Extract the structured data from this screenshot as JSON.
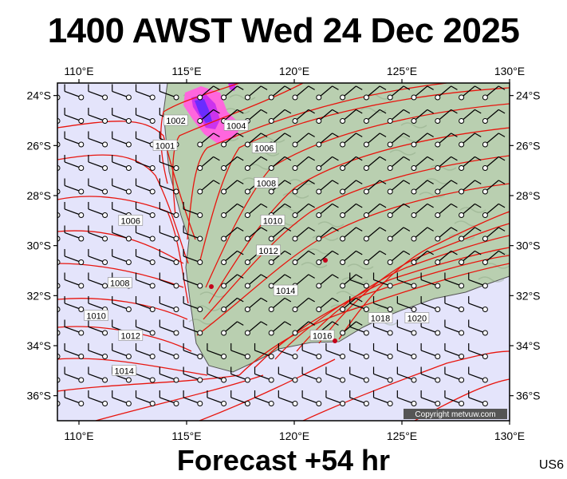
{
  "title": "1400 AWST Wed 24 Dec 2025",
  "footer": "Forecast +54 hr",
  "code": "US6",
  "copyright": "Copyright metvuw.com",
  "map": {
    "lon_range": [
      109,
      130
    ],
    "lat_range": [
      -37,
      -23.5
    ],
    "lon_ticks": [
      "110°E",
      "115°E",
      "120°E",
      "125°E",
      "130°E"
    ],
    "lat_ticks": [
      "24°S",
      "26°S",
      "28°S",
      "30°S",
      "32°S",
      "34°S",
      "36°S"
    ],
    "colors": {
      "sea": "#e4e4fb",
      "land": "#b9cfb0",
      "isobar": "#e8150e",
      "rain_light": "#ff66dd",
      "rain_heavy": "#6a2cff"
    },
    "isobar_labels": [
      {
        "text": "1002",
        "lon": 114.5,
        "lat": -25.0
      },
      {
        "text": "1001",
        "lon": 114.0,
        "lat": -26.0
      },
      {
        "text": "1004",
        "lon": 117.3,
        "lat": -25.2
      },
      {
        "text": "1006",
        "lon": 118.6,
        "lat": -26.1
      },
      {
        "text": "1008",
        "lon": 118.7,
        "lat": -27.5
      },
      {
        "text": "1006",
        "lon": 112.4,
        "lat": -29.0
      },
      {
        "text": "1010",
        "lon": 119.0,
        "lat": -29.0
      },
      {
        "text": "1012",
        "lon": 118.8,
        "lat": -30.2
      },
      {
        "text": "1008",
        "lon": 111.9,
        "lat": -31.5
      },
      {
        "text": "1014",
        "lon": 119.6,
        "lat": -31.8
      },
      {
        "text": "1010",
        "lon": 110.8,
        "lat": -32.8
      },
      {
        "text": "1018",
        "lon": 124.0,
        "lat": -32.9
      },
      {
        "text": "1020",
        "lon": 125.7,
        "lat": -32.9
      },
      {
        "text": "1012",
        "lon": 112.4,
        "lat": -33.6
      },
      {
        "text": "1016",
        "lon": 121.3,
        "lat": -33.6
      },
      {
        "text": "1014",
        "lon": 112.1,
        "lat": -35.0
      }
    ]
  }
}
